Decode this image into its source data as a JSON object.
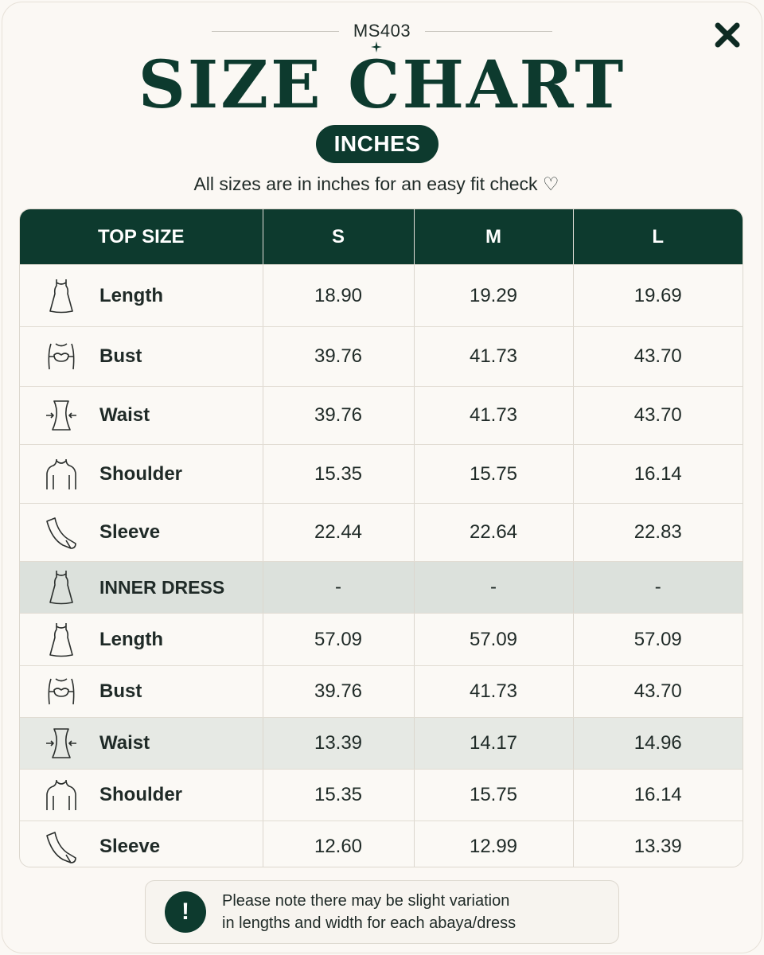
{
  "header": {
    "product_code": "MS403",
    "title": "SIZE CHART",
    "unit_badge": "INCHES",
    "subtitle": "All sizes are in inches for an easy fit check ♡"
  },
  "table": {
    "columns": [
      "TOP SIZE",
      "S",
      "M",
      "L"
    ],
    "rows": [
      {
        "icon": "dress-length-icon",
        "label": "Length",
        "values": [
          "18.90",
          "19.29",
          "19.69"
        ]
      },
      {
        "icon": "bust-icon",
        "label": "Bust",
        "values": [
          "39.76",
          "41.73",
          "43.70"
        ]
      },
      {
        "icon": "waist-icon",
        "label": "Waist",
        "values": [
          "39.76",
          "41.73",
          "43.70"
        ]
      },
      {
        "icon": "shoulder-icon",
        "label": "Shoulder",
        "values": [
          "15.35",
          "15.75",
          "16.14"
        ]
      },
      {
        "icon": "sleeve-icon",
        "label": "Sleeve",
        "values": [
          "22.44",
          "22.64",
          "22.83"
        ]
      },
      {
        "icon": "dress-icon",
        "label": "INNER DRESS",
        "values": [
          "-",
          "-",
          "-"
        ]
      },
      {
        "icon": "dress-length-icon",
        "label": "Length",
        "values": [
          "57.09",
          "57.09",
          "57.09"
        ]
      },
      {
        "icon": "bust-icon",
        "label": "Bust",
        "values": [
          "39.76",
          "41.73",
          "43.70"
        ]
      },
      {
        "icon": "waist-icon",
        "label": "Waist",
        "values": [
          "13.39",
          "14.17",
          "14.96"
        ]
      },
      {
        "icon": "shoulder-icon",
        "label": "Shoulder",
        "values": [
          "15.35",
          "15.75",
          "16.14"
        ]
      },
      {
        "icon": "sleeve-icon",
        "label": "Sleeve",
        "values": [
          "12.60",
          "12.99",
          "13.39"
        ]
      }
    ]
  },
  "note": {
    "icon": "exclamation-icon",
    "line1": "Please note there may be slight variation",
    "line2": "in lengths and width for each abaya/dress"
  },
  "close": {
    "icon": "close-icon"
  },
  "colors": {
    "accent": "#0d3a2e",
    "section_row": "#dce1dc",
    "highlight_row": "#e6e9e4",
    "background": "#fbf8f4"
  }
}
